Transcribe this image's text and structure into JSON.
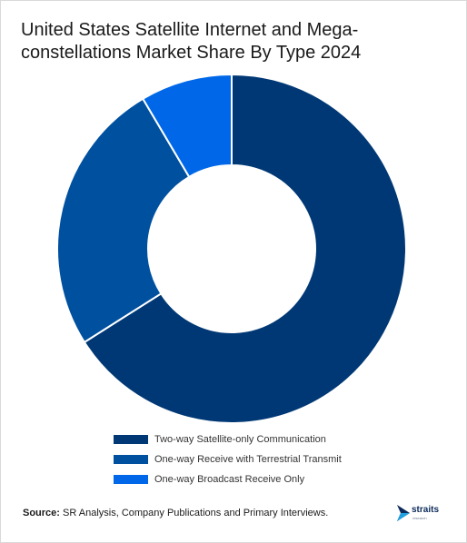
{
  "title": "United States Satellite Internet and Mega-constellations Market Share By Type 2024",
  "chart_data": {
    "type": "pie",
    "title": "United States Satellite Internet and Mega-constellations Market Share By Type 2024",
    "donut": true,
    "categories": [
      "Two-way Satellite-only Communication",
      "One-way Receive with Terrestrial Transmit",
      "One-way Broadcast Receive Only"
    ],
    "values": [
      66,
      25.5,
      8.5
    ],
    "colors": [
      "#003875",
      "#0050a0",
      "#0068e8"
    ],
    "legend_position": "bottom"
  },
  "source": {
    "label": "Source:",
    "text": "SR Analysis, Company Publications and Primary Interviews."
  },
  "logo": {
    "text": "straits",
    "subtext": "research"
  }
}
